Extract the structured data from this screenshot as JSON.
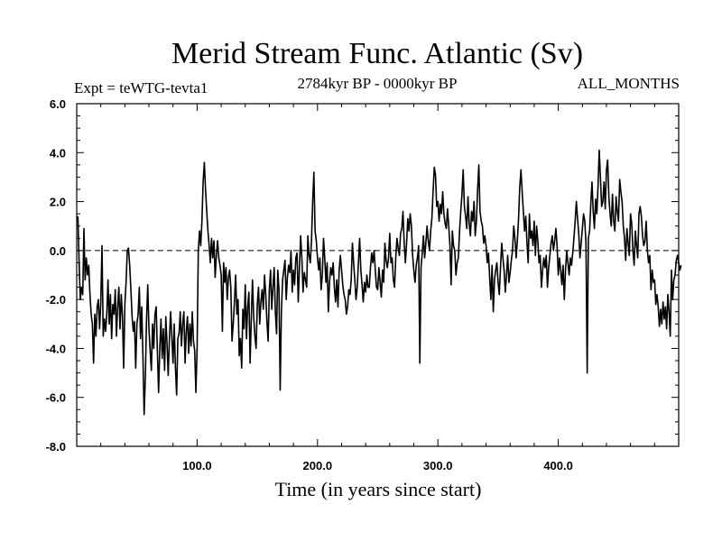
{
  "chart_data": {
    "type": "line",
    "title": "Merid Stream Func. Atlantic (Sv)",
    "subtitle_left": "Expt = teWTG-tevta1",
    "subtitle_center": "2784kyr BP - 0000kyr BP",
    "subtitle_right": "ALL_MONTHS",
    "xlabel": "Time (in years since start)",
    "ylabel": "",
    "xlim": [
      0,
      500
    ],
    "ylim": [
      -8,
      6
    ],
    "x_ticks": [
      100,
      200,
      300,
      400
    ],
    "x_tick_labels": [
      "100.0",
      "200.0",
      "300.0",
      "400.0"
    ],
    "y_ticks": [
      -8,
      -6,
      -4,
      -2,
      0,
      2,
      4,
      6
    ],
    "y_tick_labels": [
      "-8.0",
      "-6.0",
      "-4.0",
      "-2.0",
      "0.0",
      "2.0",
      "4.0",
      "6.0"
    ],
    "reference_line": 0,
    "series": [
      {
        "name": "Merid Stream Func. Atlantic",
        "x_start": 1,
        "x_step": 1,
        "values": [
          1.4,
          -0.5,
          -2.0,
          -1.5,
          -1.8,
          0.9,
          -1.2,
          -0.3,
          -1.0,
          -0.6,
          -1.8,
          -2.6,
          -3.0,
          -4.6,
          -2.6,
          -3.5,
          -2.3,
          -2.0,
          -3.2,
          -2.1,
          0.2,
          -3.5,
          -2.8,
          -3.3,
          -2.6,
          -1.2,
          -3.0,
          -1.8,
          -3.6,
          -2.2,
          -2.6,
          -1.6,
          -3.5,
          -2.3,
          -1.5,
          -3.2,
          -1.8,
          -2.7,
          -4.8,
          -2.2,
          -1.3,
          0.0,
          0.1,
          -0.6,
          -1.6,
          -2.7,
          -3.3,
          -2.9,
          -4.8,
          -3.0,
          -2.6,
          -1.5,
          -3.6,
          -2.3,
          -4.3,
          -6.7,
          -5.2,
          -2.8,
          -1.4,
          -3.2,
          -4.1,
          -4.9,
          -3.0,
          -4.0,
          -2.6,
          -2.3,
          -4.1,
          -5.8,
          -4.0,
          -2.8,
          -4.4,
          -3.2,
          -4.9,
          -2.7,
          -3.8,
          -5.1,
          -3.6,
          -2.5,
          -3.5,
          -4.6,
          -3.0,
          -4.8,
          -5.9,
          -3.6,
          -3.4,
          -2.5,
          -3.9,
          -3.0,
          -2.5,
          -4.6,
          -3.3,
          -2.7,
          -4.2,
          -3.0,
          -3.9,
          -2.5,
          -3.7,
          -4.1,
          -5.8,
          -4.0,
          0.0,
          0.8,
          0.2,
          1.2,
          2.8,
          3.6,
          2.5,
          1.6,
          0.8,
          0.2,
          -0.5,
          0.5,
          -0.3,
          0.4,
          -1.1,
          -0.2,
          0.4,
          -0.3,
          -0.6,
          -1.0,
          -3.3,
          -0.5,
          -1.3,
          -0.7,
          -2.0,
          -1.1,
          -0.8,
          -1.5,
          -3.7,
          -3.0,
          -2.1,
          -1.0,
          -2.6,
          -2.0,
          -4.3,
          -3.6,
          -4.8,
          -2.4,
          -3.2,
          -1.4,
          -3.6,
          -2.3,
          -1.7,
          -4.6,
          -2.8,
          -1.2,
          -2.7,
          -3.5,
          -4.0,
          -2.2,
          -1.5,
          -3.0,
          -2.1,
          -1.6,
          -2.4,
          -1.0,
          -1.8,
          -2.9,
          -3.7,
          -1.6,
          -0.8,
          -2.4,
          -1.5,
          -0.7,
          -2.5,
          -3.4,
          -0.8,
          -1.6,
          -5.7,
          -2.5,
          -1.2,
          -0.8,
          -0.4,
          -2.0,
          -1.1,
          -0.6,
          -0.9,
          0.0,
          -1.7,
          -0.8,
          -1.4,
          -0.3,
          -0.1,
          -2.1,
          -0.7,
          0.6,
          -0.3,
          -1.7,
          -0.9,
          -1.2,
          -1.5,
          0.6,
          -0.2,
          -0.5,
          0.4,
          2.0,
          3.2,
          0.8,
          0.4,
          -0.3,
          -0.8,
          -0.3,
          -1.6,
          -1.0,
          0.5,
          -0.3,
          -1.3,
          -0.5,
          -2.5,
          -1.3,
          -0.7,
          -1.0,
          -0.5,
          -1.5,
          -2.1,
          -1.2,
          -2.3,
          -0.8,
          -0.2,
          -0.8,
          -1.4,
          -1.8,
          -2.0,
          -2.6,
          -2.3,
          -1.6,
          -1.8,
          -1.2,
          0.3,
          -0.5,
          -1.2,
          -2.0,
          -1.5,
          -0.5,
          0.5,
          -0.8,
          -1.4,
          -2.1,
          -1.3,
          -1.7,
          -1.0,
          -1.5,
          -1.5,
          -0.7,
          -0.1,
          -0.5,
          0.0,
          -0.8,
          -1.5,
          -1.6,
          -0.7,
          -1.3,
          -1.9,
          -0.8,
          -1.3,
          0.3,
          -0.4,
          -0.7,
          -0.3,
          0.7,
          -0.5,
          -0.3,
          -1.2,
          -1.5,
          -0.3,
          0.5,
          0.1,
          -0.2,
          0.7,
          0.9,
          1.6,
          0.3,
          -0.5,
          0.3,
          1.3,
          0.8,
          1.5,
          1.0,
          -0.2,
          -0.8,
          -1.3,
          -0.6,
          -0.3,
          0.2,
          -4.6,
          -0.7,
          -0.1,
          0.6,
          -0.3,
          0.3,
          1.0,
          0.4,
          0.0,
          0.8,
          1.3,
          2.4,
          3.4,
          3.1,
          1.8,
          2.0,
          1.2,
          1.9,
          1.5,
          2.4,
          1.5,
          1.1,
          0.9,
          1.7,
          1.0,
          0.2,
          -1.4,
          0.8,
          0.2,
          0.0,
          -1.0,
          -0.5,
          -0.3,
          0.8,
          1.6,
          2.3,
          3.3,
          1.8,
          1.4,
          0.9,
          2.2,
          1.1,
          0.6,
          1.6,
          1.2,
          2.0,
          0.6,
          1.2,
          2.5,
          3.5,
          1.6,
          1.2,
          1.0,
          0.3,
          0.6,
          0.2,
          -0.5,
          -0.1,
          -1.1,
          -2.0,
          -0.6,
          -2.5,
          -1.2,
          -0.8,
          -0.5,
          -1.3,
          -1.8,
          -0.7,
          0.3,
          -0.3,
          -0.8,
          -1.7,
          -1.0,
          -0.2,
          -1.3,
          -0.9,
          -0.4,
          0.0,
          1.0,
          0.5,
          -0.3,
          0.4,
          1.3,
          2.6,
          3.3,
          2.4,
          1.6,
          0.8,
          1.4,
          0.3,
          -0.5,
          1.5,
          0.5,
          0.8,
          0.2,
          1.2,
          -0.2,
          1.0,
          0.4,
          -0.5,
          -0.2,
          -1.5,
          -0.8,
          -0.3,
          -0.7,
          -0.2,
          -1.5,
          -0.7,
          -0.2,
          0.3,
          0.6,
          0.0,
          0.4,
          0.9,
          0.2,
          -1.0,
          -0.3,
          -0.8,
          -1.4,
          -0.6,
          -2.0,
          -0.8,
          0.0,
          -0.5,
          -1.0,
          -0.3,
          -0.6,
          -0.1,
          0.5,
          1.2,
          2.0,
          1.3,
          0.7,
          -0.3,
          0.3,
          0.9,
          1.5,
          1.2,
          0.3,
          -5.0,
          0.5,
          0.8,
          1.9,
          2.8,
          1.6,
          0.9,
          2.1,
          1.5,
          2.6,
          4.1,
          3.0,
          1.8,
          2.0,
          2.8,
          1.7,
          3.3,
          3.7,
          2.2,
          1.5,
          1.0,
          2.3,
          1.2,
          0.8,
          2.2,
          1.6,
          1.2,
          2.9,
          2.4,
          2.0,
          1.0,
          0.5,
          -0.4,
          0.9,
          0.3,
          -0.2,
          1.5,
          1.1,
          0.0,
          -0.6,
          0.8,
          0.2,
          -0.3,
          1.5,
          1.8,
          1.4,
          0.6,
          0.2,
          0.4,
          1.2,
          0.0,
          -0.5,
          -0.2,
          -1.6,
          -0.8,
          -1.3,
          -1.2,
          -2.2,
          -1.8,
          -2.3,
          -3.1,
          -2.4,
          -3.0,
          -2.1,
          -2.8,
          -2.3,
          -3.2,
          -1.8,
          -2.5,
          -3.5,
          -0.8,
          -2.0,
          -1.2,
          -1.0,
          -0.4,
          -0.2,
          -0.5,
          -0.8,
          -0.6
        ]
      }
    ]
  }
}
